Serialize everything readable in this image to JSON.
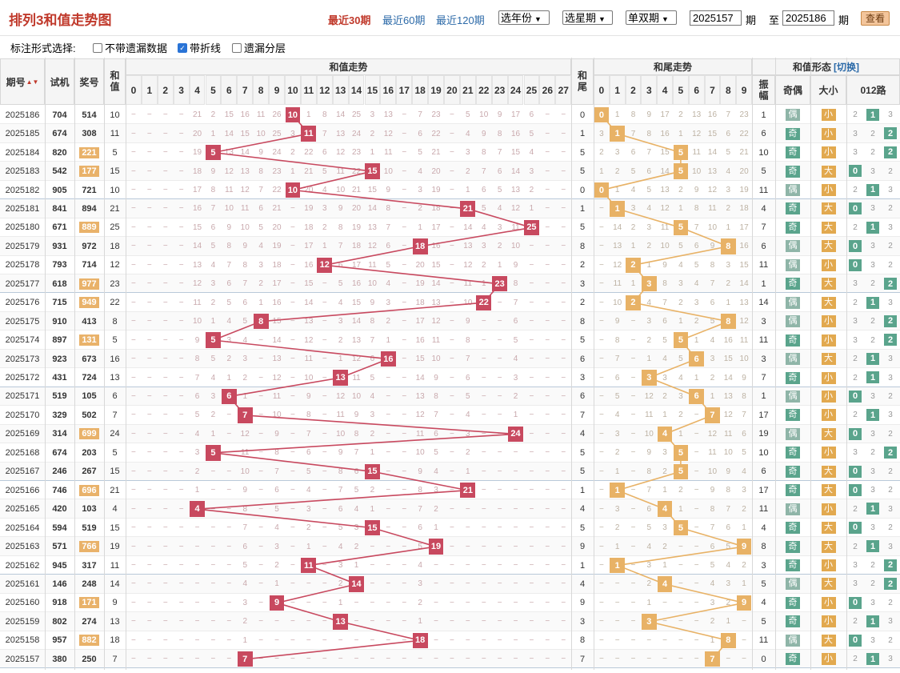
{
  "header": {
    "title": "排列3和值走势图",
    "nav": [
      {
        "label": "最近30期",
        "active": true
      },
      {
        "label": "最近60期",
        "active": false
      },
      {
        "label": "最近120期",
        "active": false
      }
    ],
    "selects": [
      "选年份",
      "选星期",
      "单双期"
    ],
    "from_value": "2025157",
    "from_unit": "期",
    "to_label": "至",
    "to_value": "2025186",
    "to_unit": "期",
    "query_label": "查看"
  },
  "options": {
    "label": "标注形式选择:",
    "items": [
      {
        "label": "不带遗漏数据",
        "checked": false
      },
      {
        "label": "带折线",
        "checked": true
      },
      {
        "label": "遗漏分层",
        "checked": false
      }
    ]
  },
  "columns": {
    "period": "期号",
    "trial": "试机",
    "prize": "奖号",
    "sum": "和值",
    "sum_trend": "和值走势",
    "sum_tail": "和尾",
    "tail_trend": "和尾走势",
    "form": "和值形态",
    "switch": "[切换]",
    "amp": "振幅",
    "odd_even": "奇偶",
    "size": "大小",
    "road": "012路",
    "sum_nums": [
      "0",
      "1",
      "2",
      "3",
      "4",
      "5",
      "6",
      "7",
      "8",
      "9",
      "10",
      "11",
      "12",
      "13",
      "14",
      "15",
      "16",
      "17",
      "18",
      "19",
      "20",
      "21",
      "22",
      "23",
      "24",
      "25",
      "26",
      "27"
    ],
    "tail_nums": [
      "0",
      "1",
      "2",
      "3",
      "4",
      "5",
      "6",
      "7",
      "8",
      "9"
    ]
  },
  "labels": {
    "odd": "奇",
    "even": "偶",
    "big": "大",
    "small": "小",
    "dash": "−"
  },
  "colors": {
    "sum_mark": "#c8495f",
    "tail_mark": "#e8b266",
    "prize_hl": "#e9b26a",
    "sum_line": "#c8495f",
    "tail_line": "#e8b266",
    "odd_bg": "#5aa48c",
    "badge_bg": "#e2a94f",
    "road_bg": "#5aa48c",
    "title": "#c0392b",
    "link": "#2c6aa8"
  },
  "rows": [
    {
      "p": "2025186",
      "t": "704",
      "z": "514",
      "h": false
    },
    {
      "p": "2025185",
      "t": "674",
      "z": "308",
      "h": false
    },
    {
      "p": "2025184",
      "t": "820",
      "z": "221",
      "h": true
    },
    {
      "p": "2025183",
      "t": "542",
      "z": "177",
      "h": true
    },
    {
      "p": "2025182",
      "t": "905",
      "z": "721",
      "h": false
    },
    {
      "p": "2025181",
      "t": "841",
      "z": "894",
      "h": false
    },
    {
      "p": "2025180",
      "t": "671",
      "z": "889",
      "h": true
    },
    {
      "p": "2025179",
      "t": "931",
      "z": "972",
      "h": false
    },
    {
      "p": "2025178",
      "t": "793",
      "z": "714",
      "h": false
    },
    {
      "p": "2025177",
      "t": "618",
      "z": "977",
      "h": true
    },
    {
      "p": "2025176",
      "t": "715",
      "z": "949",
      "h": true
    },
    {
      "p": "2025175",
      "t": "910",
      "z": "413",
      "h": false
    },
    {
      "p": "2025174",
      "t": "897",
      "z": "131",
      "h": true
    },
    {
      "p": "2025173",
      "t": "923",
      "z": "673",
      "h": false
    },
    {
      "p": "2025172",
      "t": "431",
      "z": "724",
      "h": false
    },
    {
      "p": "2025171",
      "t": "519",
      "z": "105",
      "h": false
    },
    {
      "p": "2025170",
      "t": "329",
      "z": "502",
      "h": false
    },
    {
      "p": "2025169",
      "t": "314",
      "z": "699",
      "h": true
    },
    {
      "p": "2025168",
      "t": "674",
      "z": "203",
      "h": false
    },
    {
      "p": "2025167",
      "t": "246",
      "z": "267",
      "h": false
    },
    {
      "p": "2025166",
      "t": "746",
      "z": "696",
      "h": true
    },
    {
      "p": "2025165",
      "t": "420",
      "z": "103",
      "h": false
    },
    {
      "p": "2025164",
      "t": "594",
      "z": "519",
      "h": false
    },
    {
      "p": "2025163",
      "t": "571",
      "z": "766",
      "h": true
    },
    {
      "p": "2025162",
      "t": "945",
      "z": "317",
      "h": false
    },
    {
      "p": "2025161",
      "t": "146",
      "z": "248",
      "h": false
    },
    {
      "p": "2025160",
      "t": "918",
      "z": "171",
      "h": true
    },
    {
      "p": "2025159",
      "t": "802",
      "z": "274",
      "h": false
    },
    {
      "p": "2025158",
      "t": "957",
      "z": "882",
      "h": true
    },
    {
      "p": "2025157",
      "t": "380",
      "z": "250",
      "h": false
    }
  ]
}
